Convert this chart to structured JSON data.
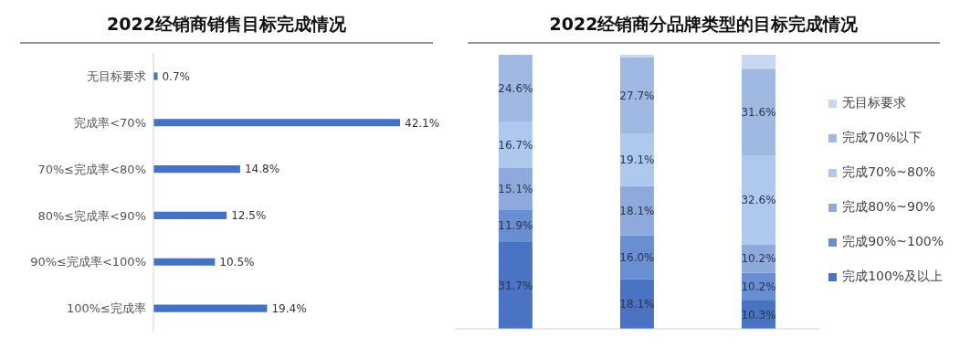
{
  "chart_data": [
    {
      "type": "bar",
      "title": "2022经销商销售目标完成情况",
      "orientation": "horizontal",
      "categories": [
        "无目标要求",
        "完成率<70%",
        "70%≤完成率<80%",
        "80%≤完成率<90%",
        "90%≤完成率<100%",
        "100%≤完成率"
      ],
      "values": [
        0.7,
        42.1,
        14.8,
        12.5,
        10.5,
        19.4
      ],
      "value_labels": [
        "0.7%",
        "42.1%",
        "14.8%",
        "12.5%",
        "10.5%",
        "19.4%"
      ],
      "color": "#4472c4",
      "grid": false,
      "legend": false
    },
    {
      "type": "bar",
      "title": "2022经销商分品牌类型的目标完成情况",
      "stacked": true,
      "categories": [
        null,
        null,
        null
      ],
      "series": [
        {
          "name": "完成100%及以上",
          "color": "#4a73c4",
          "values": [
            31.7,
            18.1,
            10.3
          ],
          "value_labels": [
            "31.7%",
            "18.1%",
            "10.3%"
          ]
        },
        {
          "name": "完成90%~100%",
          "color": "#6a8ed2",
          "values": [
            11.9,
            16.0,
            10.2
          ],
          "value_labels": [
            "11.9%",
            "16.0%",
            "10.2%"
          ]
        },
        {
          "name": "完成80%~90%",
          "color": "#8ea9dc",
          "values": [
            15.1,
            18.1,
            10.2
          ],
          "value_labels": [
            "15.1%",
            "18.1%",
            "10.2%"
          ]
        },
        {
          "name": "完成70%~80%",
          "color": "#aec8ee",
          "values": [
            16.7,
            19.1,
            32.6
          ],
          "value_labels": [
            "16.7%",
            "19.1%",
            "32.6%"
          ]
        },
        {
          "name": "完成70%以下",
          "color": "#9fb9e2",
          "values": [
            24.6,
            27.7,
            31.6
          ],
          "value_labels": [
            "24.6%",
            "27.7%",
            "31.6%"
          ]
        },
        {
          "name": "无目标要求",
          "color": "#c8d8f0",
          "values": [
            0,
            1.0,
            5.1
          ],
          "value_labels": [
            null,
            null,
            null
          ]
        }
      ],
      "grid": false,
      "legend": "right"
    }
  ]
}
